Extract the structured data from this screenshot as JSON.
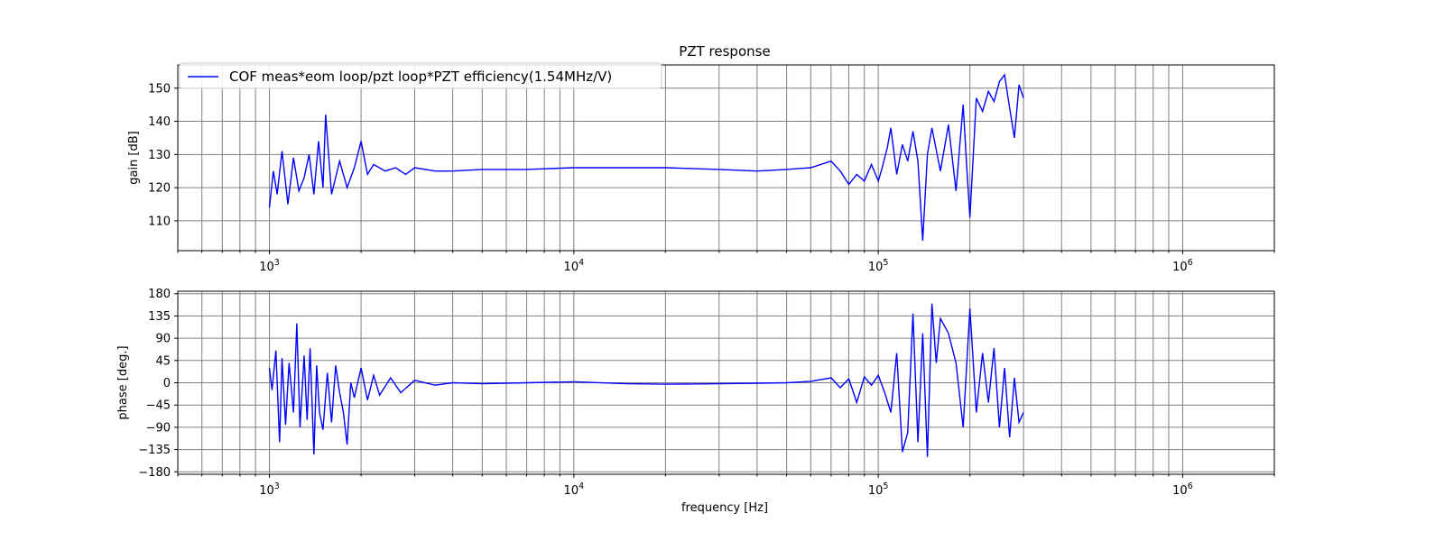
{
  "chart_data": {
    "type": "line",
    "title": "PZT response",
    "xlabel": "frequency [Hz]",
    "x_scale": "log",
    "xlim": [
      500,
      2000000
    ],
    "x_major_ticks": [
      {
        "value": 1000,
        "base": "10",
        "exp": "3"
      },
      {
        "value": 10000,
        "base": "10",
        "exp": "4"
      },
      {
        "value": 100000,
        "base": "10",
        "exp": "5"
      },
      {
        "value": 1000000,
        "base": "10",
        "exp": "6"
      }
    ],
    "grid": true,
    "legend": {
      "location": "upper-left",
      "entries": [
        "COF meas*eom loop/pzt loop*PZT efficiency(1.54MHz/V)"
      ]
    },
    "line_color": "#0000ff",
    "panels": [
      {
        "name": "gain",
        "ylabel": "gain [dB]",
        "ylim": [
          101,
          157
        ],
        "yticks": [
          110,
          120,
          130,
          140,
          150
        ],
        "series": {
          "name": "COF meas*eom loop/pzt loop*PZT efficiency(1.54MHz/V)",
          "x": [
            1000,
            1030,
            1060,
            1100,
            1150,
            1200,
            1250,
            1300,
            1350,
            1400,
            1450,
            1500,
            1530,
            1600,
            1700,
            1800,
            1900,
            2000,
            2100,
            2200,
            2400,
            2600,
            2800,
            3000,
            3500,
            4000,
            5000,
            7000,
            10000,
            15000,
            20000,
            30000,
            40000,
            50000,
            60000,
            70000,
            75000,
            80000,
            85000,
            90000,
            95000,
            100000,
            103000,
            107000,
            110000,
            115000,
            120000,
            125000,
            130000,
            135000,
            140000,
            145000,
            150000,
            160000,
            170000,
            180000,
            190000,
            195000,
            200000,
            210000,
            220000,
            230000,
            240000,
            250000,
            260000,
            270000,
            280000,
            290000,
            300000
          ],
          "y": [
            114,
            125,
            118,
            131,
            115,
            129,
            119,
            123,
            130,
            118,
            134,
            120,
            142,
            118,
            128,
            120,
            126,
            134,
            124,
            127,
            125,
            126,
            124,
            126,
            125,
            125,
            125.5,
            125.5,
            126,
            126,
            126,
            125.5,
            125,
            125.5,
            126,
            128,
            125,
            121,
            124,
            122,
            127,
            122,
            126,
            132,
            138,
            124,
            133,
            128,
            137,
            128,
            104,
            130,
            138,
            125,
            139,
            119,
            145,
            127,
            111,
            147,
            143,
            149,
            146,
            152,
            154,
            144,
            135,
            151,
            147
          ]
        }
      },
      {
        "name": "phase",
        "ylabel": "phase [deg.]",
        "ylim": [
          -185,
          185
        ],
        "yticks": [
          -180,
          -135,
          -90,
          -45,
          0,
          45,
          90,
          135,
          180
        ],
        "ytick_labels": [
          "−180",
          "−135",
          "−90",
          "−45",
          "0",
          "45",
          "90",
          "135",
          "180"
        ],
        "series": {
          "name": "COF meas*eom loop/pzt loop*PZT efficiency(1.54MHz/V)",
          "x": [
            1000,
            1020,
            1050,
            1080,
            1100,
            1130,
            1160,
            1200,
            1230,
            1260,
            1300,
            1330,
            1360,
            1400,
            1430,
            1460,
            1500,
            1550,
            1600,
            1650,
            1700,
            1750,
            1800,
            1850,
            1900,
            2000,
            2100,
            2200,
            2300,
            2500,
            2700,
            3000,
            3500,
            4000,
            5000,
            7000,
            10000,
            15000,
            20000,
            30000,
            40000,
            50000,
            60000,
            70000,
            75000,
            80000,
            85000,
            90000,
            95000,
            100000,
            105000,
            110000,
            115000,
            120000,
            125000,
            130000,
            135000,
            140000,
            145000,
            150000,
            155000,
            160000,
            170000,
            180000,
            190000,
            200000,
            210000,
            220000,
            230000,
            240000,
            250000,
            260000,
            270000,
            280000,
            290000,
            300000
          ],
          "y": [
            30,
            -15,
            65,
            -120,
            50,
            -85,
            40,
            -60,
            120,
            -90,
            55,
            -75,
            70,
            -145,
            35,
            -60,
            -95,
            20,
            -80,
            35,
            -20,
            -60,
            -125,
            0,
            -30,
            30,
            -35,
            15,
            -25,
            10,
            -20,
            5,
            -5,
            0,
            -2,
            0,
            2,
            -2,
            -3,
            -2,
            -1,
            0,
            3,
            10,
            -10,
            8,
            -40,
            12,
            -5,
            15,
            -20,
            -60,
            60,
            -140,
            -100,
            140,
            -120,
            100,
            -150,
            160,
            40,
            130,
            100,
            40,
            -90,
            150,
            -60,
            60,
            -40,
            70,
            -90,
            30,
            -110,
            10,
            -80,
            -60
          ]
        }
      }
    ]
  }
}
